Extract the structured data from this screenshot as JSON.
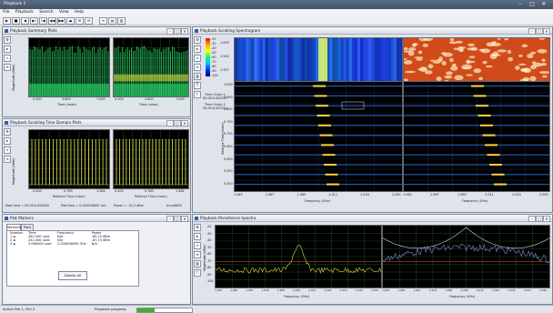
{
  "app": {
    "title": "Playback 1"
  },
  "window_controls": {
    "min": "–",
    "max": "□",
    "close": "✕"
  },
  "menu": [
    "File",
    "Playback",
    "Search",
    "View",
    "Help"
  ],
  "toolbar": {
    "buttons": [
      "▶",
      "■",
      "◀",
      "▶|",
      "|◀",
      "◀◀",
      "▶▶",
      "⏏",
      "⊞",
      "⊟",
      "≡",
      "▤",
      "▥"
    ]
  },
  "panels": {
    "summary": {
      "title": "Playback Summary Plots",
      "ylabel": "Magnitude (dBm)",
      "xlabel": "Time (msec)",
      "left_xticks": [
        "0.000",
        "3.600",
        "7.000"
      ],
      "right_xticks": [
        "0.000",
        "3.600",
        "7.000"
      ],
      "yticks": [
        "-20",
        "-40",
        "-60",
        "-80",
        "-100"
      ]
    },
    "time": {
      "title": "Playback Scrolling Time Domain Plots",
      "ylabel": "Magnitude (dBm)",
      "xlabel": "Relative Time (msec)",
      "left_xticks": [
        "0.000",
        "0.789",
        "1.584"
      ],
      "right_xticks": [
        "0.000",
        "0.789",
        "1.584"
      ],
      "yticks": [
        "-20",
        "-40",
        "-60",
        "-80",
        "-100"
      ],
      "readout": [
        "Real time = 00:00:0.000005",
        "Plot time = 0.000534887 sec",
        "Power = -32.2 dBm",
        "AnnaWHS"
      ]
    },
    "spectro": {
      "title": "Playback Scrolling Spectrogram",
      "colorbar_ticks": [
        "-20",
        "-30",
        "-40",
        "-50",
        "-60",
        "-70",
        "-80",
        "-90",
        "-100"
      ],
      "top_yticks": [
        "1.000",
        "1.500",
        "1.337"
      ],
      "time_origin_1": "Time Origin 1",
      "time_origin_1_val": "00:00:0.000211",
      "time_origin_2": "Time Origin 2",
      "time_origin_2_val": "00:00:0.000211",
      "ylabel": "Relative Time (msec)",
      "yticks": [
        "1.000",
        "0.900",
        "0.800",
        "0.750",
        "0.700",
        "0.650",
        "0.600",
        "0.550",
        "0.500"
      ],
      "xlabel": "Frequency (GHz)",
      "left_xticks": [
        "1.945",
        "1.967",
        "1.989",
        "2.011",
        "2.033",
        "2.055"
      ],
      "right_xticks": [
        "1.945",
        "1.967",
        "1.989",
        "2.011",
        "2.033",
        "2.055"
      ]
    },
    "markers": {
      "title": "Plot Markers",
      "tabs": [
        "Markers",
        "Path"
      ],
      "headers": [
        "Number",
        "Time",
        "Frequency",
        "Power"
      ],
      "rows": [
        {
          "number": "1",
          "time": "282.000 usec",
          "freq": "N/A",
          "power": "-85.15 dBm"
        },
        {
          "number": "2",
          "time": "242.000 usec",
          "freq": "N/A",
          "power": "-87.15 dBm"
        },
        {
          "number": "3",
          "time": "3.060000 usec",
          "freq": "2.000008050 GHz",
          "power": "N/A"
        }
      ],
      "row_colors": [
        "#d43a2f",
        "#2f8f3a",
        "#3560c5"
      ],
      "delete_label": "Delete All"
    },
    "persist": {
      "title": "Playback Persistence Spectra",
      "ylabel": "Magnitude (dBm)",
      "xlabel": "Frequency (GHz)",
      "left_xticks": [
        "1.945",
        "1.956",
        "1.967",
        "1.978",
        "1.989",
        "2.000",
        "2.011",
        "2.022",
        "2.033",
        "2.044",
        "2.055"
      ],
      "right_xticks": [
        "1.945",
        "1.956",
        "1.967",
        "1.978",
        "1.989",
        "2.000",
        "2.011",
        "2.022",
        "2.033",
        "2.044",
        "2.055"
      ],
      "yticks": [
        "-20",
        "-30",
        "-40",
        "-50",
        "-60",
        "-70",
        "-80",
        "-90",
        "-100"
      ]
    }
  },
  "status": {
    "active_file": "Active File 1, File 2",
    "progress_label": "Playback progress",
    "progress": 0.32
  },
  "colors": {
    "trace": "#d8d84a",
    "grid": "#1f5f2a",
    "accent": "#2f5fae",
    "progress": "#3fae2f"
  }
}
